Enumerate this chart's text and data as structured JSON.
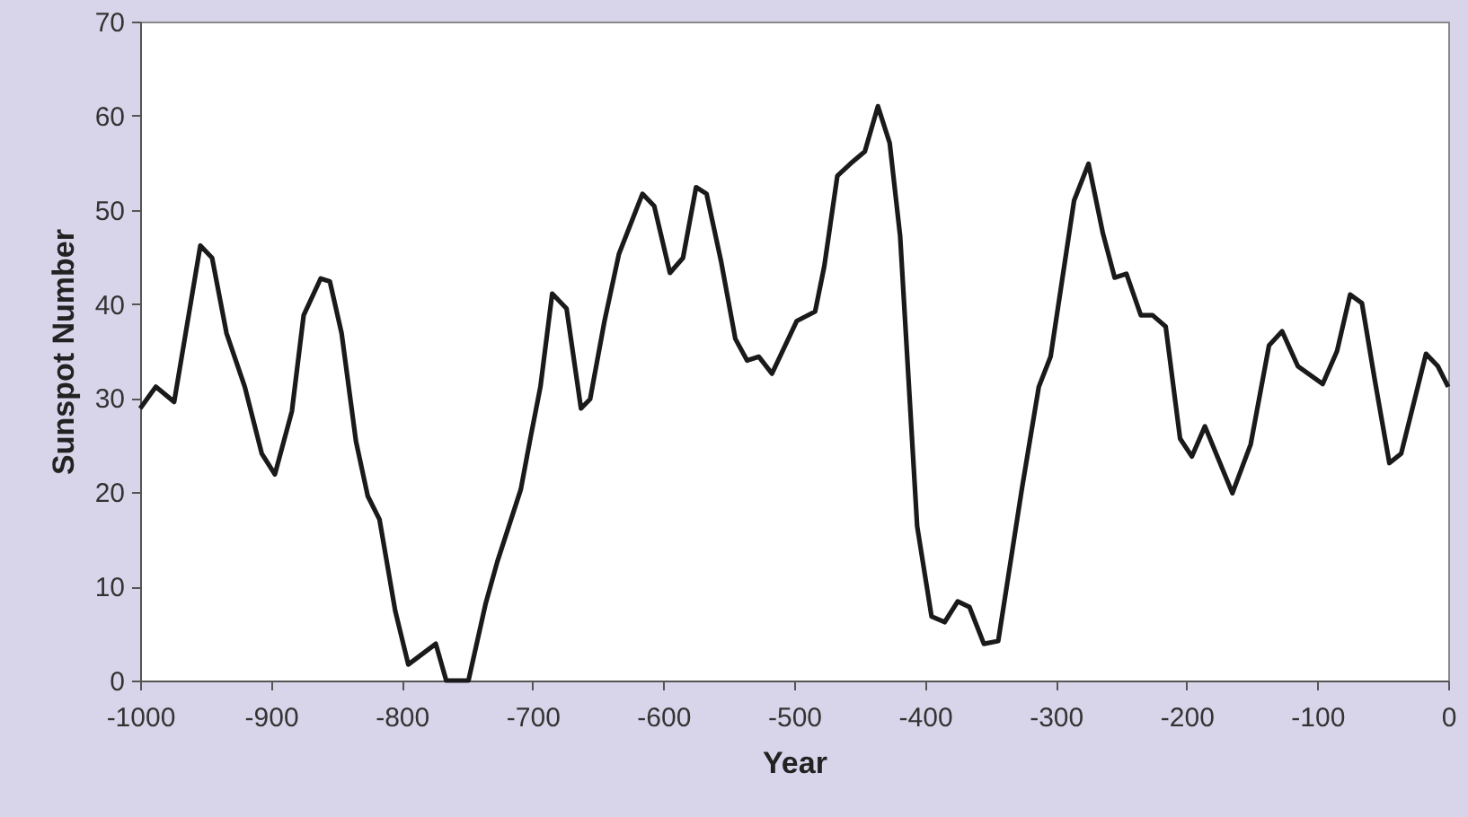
{
  "chart_data": {
    "type": "line",
    "xlabel": "Year",
    "ylabel": "Sunspot Number",
    "xlim": [
      -1000,
      0
    ],
    "xticks": [
      -1000,
      -900,
      -800,
      -700,
      -600,
      -500,
      -400,
      -300,
      -200,
      -100,
      0
    ],
    "ylim": [
      0,
      70
    ],
    "yticks": [
      0,
      10,
      20,
      30,
      40,
      50,
      60,
      70
    ],
    "grid": false,
    "legend": false,
    "marker": "none",
    "line_style": "solid",
    "series": [
      {
        "color": "#1a1a1a",
        "x": [
          -1000,
          -988,
          -974,
          -954,
          -945,
          -934,
          -920,
          -907,
          -897,
          -884,
          -875,
          -862,
          -855,
          -846,
          -835,
          -826,
          -817,
          -805,
          -795,
          -774,
          -766,
          -749,
          -736,
          -727,
          -709,
          -702,
          -694,
          -685,
          -674,
          -663,
          -656,
          -645,
          -634,
          -616,
          -607,
          -595,
          -585,
          -575,
          -567,
          -556,
          -545,
          -536,
          -527,
          -517,
          -498,
          -484,
          -477,
          -467,
          -457,
          -446,
          -436,
          -427,
          -419,
          -406,
          -395,
          -385,
          -375,
          -366,
          -355,
          -344,
          -326,
          -313,
          -304,
          -286,
          -275,
          -264,
          -255,
          -246,
          -235,
          -226,
          -216,
          -205,
          -196,
          -186,
          -165,
          -151,
          -137,
          -127,
          -115,
          -96,
          -85,
          -75,
          -66,
          -56,
          -45,
          -36,
          -17,
          -8,
          0
        ],
        "values": [
          28.9,
          31.2,
          29.6,
          46.2,
          44.9,
          36.9,
          31.2,
          24.1,
          21.9,
          28.6,
          38.8,
          42.7,
          42.4,
          36.9,
          25.4,
          19.6,
          17.1,
          7.4,
          1.7,
          3.9,
          0,
          0,
          8.1,
          12.6,
          20.3,
          25.5,
          31.2,
          41.1,
          39.5,
          28.9,
          29.9,
          38.2,
          45.3,
          51.7,
          50.4,
          43.3,
          44.9,
          52.4,
          51.7,
          44.6,
          36.3,
          34,
          34.4,
          32.6,
          38.2,
          39.2,
          44,
          53.6,
          54.9,
          56.2,
          61,
          57.1,
          47.2,
          16.4,
          6.8,
          6.2,
          8.4,
          7.8,
          3.9,
          4.2,
          20.3,
          31.2,
          34.4,
          51,
          54.9,
          47.5,
          42.8,
          43.2,
          38.8,
          38.8,
          37.6,
          25.7,
          23.8,
          27,
          19.9,
          25.1,
          35.6,
          37.1,
          33.4,
          31.5,
          35,
          41,
          40.1,
          31.8,
          23.1,
          24.1,
          34.7,
          33.4,
          31.2
        ]
      }
    ]
  }
}
